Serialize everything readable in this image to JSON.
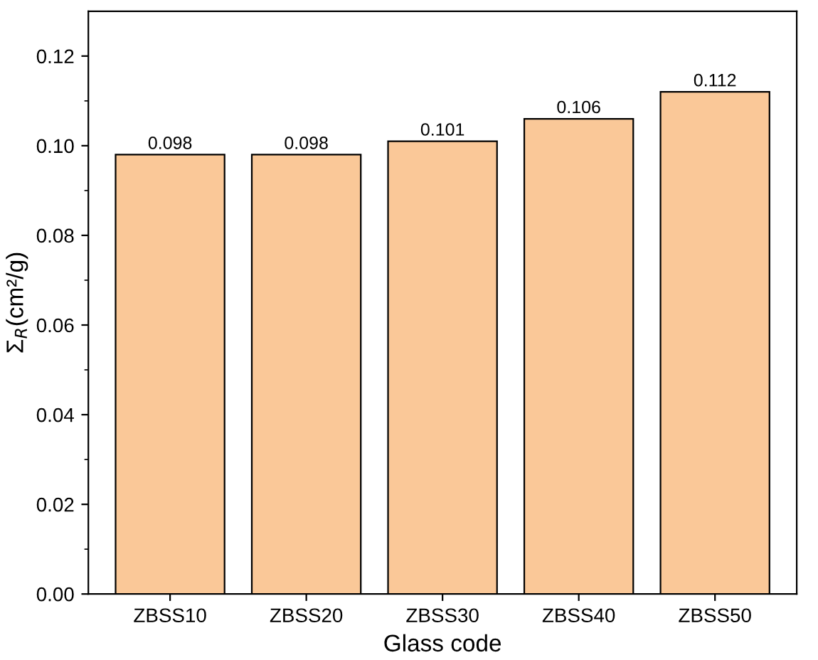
{
  "chart_data": {
    "type": "bar",
    "xlabel": "Glass code",
    "ylabel": "Σ$_{R}$(cm²/g)",
    "categories": [
      "ZBSS10",
      "ZBSS20",
      "ZBSS30",
      "ZBSS40",
      "ZBSS50"
    ],
    "values": [
      0.098,
      0.098,
      0.101,
      0.106,
      0.112
    ],
    "color": "#fac898",
    "data_labels": true,
    "ylim": [
      0,
      0.13
    ],
    "yticks": [
      {
        "value": 0,
        "label": "0.00"
      },
      {
        "value": 0.01,
        "label": null
      },
      {
        "value": 0.02,
        "label": "0.02"
      },
      {
        "value": 0.03,
        "label": null
      },
      {
        "value": 0.04,
        "label": "0.04"
      },
      {
        "value": 0.05,
        "label": null
      },
      {
        "value": 0.06,
        "label": "0.06"
      },
      {
        "value": 0.07,
        "label": null
      },
      {
        "value": 0.08,
        "label": "0.08"
      },
      {
        "value": 0.09,
        "label": null
      },
      {
        "value": 0.1,
        "label": "0.10"
      },
      {
        "value": 0.11,
        "label": null
      },
      {
        "value": 0.12,
        "label": "0.12"
      }
    ],
    "grid": false,
    "legend": false
  }
}
